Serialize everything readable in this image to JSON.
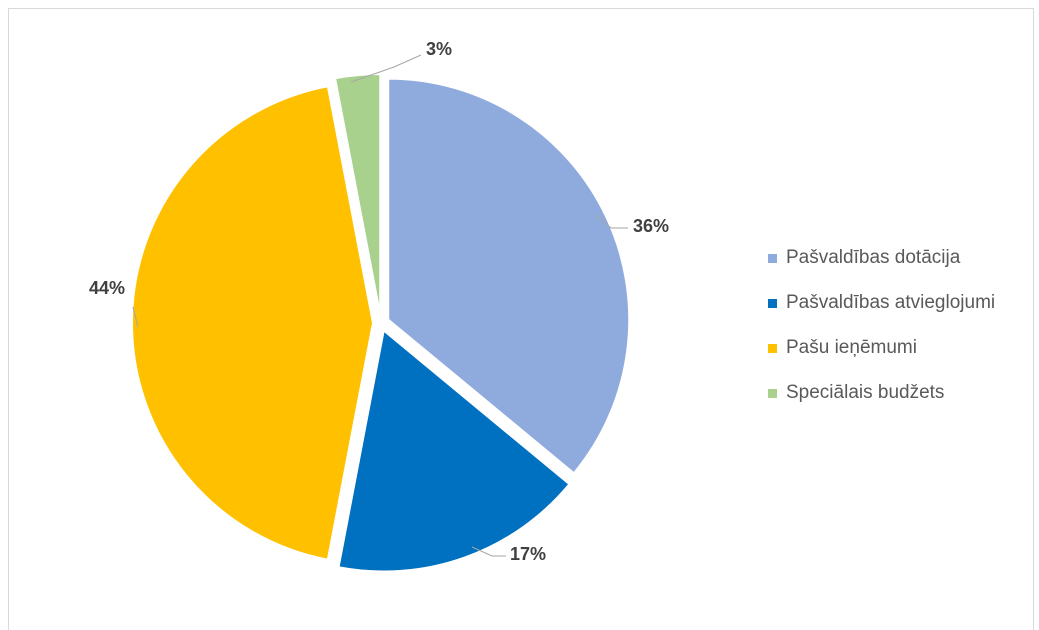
{
  "chart_data": {
    "type": "pie",
    "title": "",
    "slices": [
      {
        "label": "Pašvaldības dotācija",
        "value": 36,
        "value_label": "36%",
        "color": "#8FAADC"
      },
      {
        "label": "Pašvaldības atvieglojumi",
        "value": 17,
        "value_label": "17%",
        "color": "#0070C0"
      },
      {
        "label": "Pašu ieņēmumi",
        "value": 44,
        "value_label": "44%",
        "color": "#FFC000"
      },
      {
        "label": "Speciālais budžets",
        "value": 3,
        "value_label": "3%",
        "color": "#A9D18E"
      }
    ],
    "exploded": true,
    "legend_position": "right",
    "data_labels": "outside with leader lines"
  }
}
